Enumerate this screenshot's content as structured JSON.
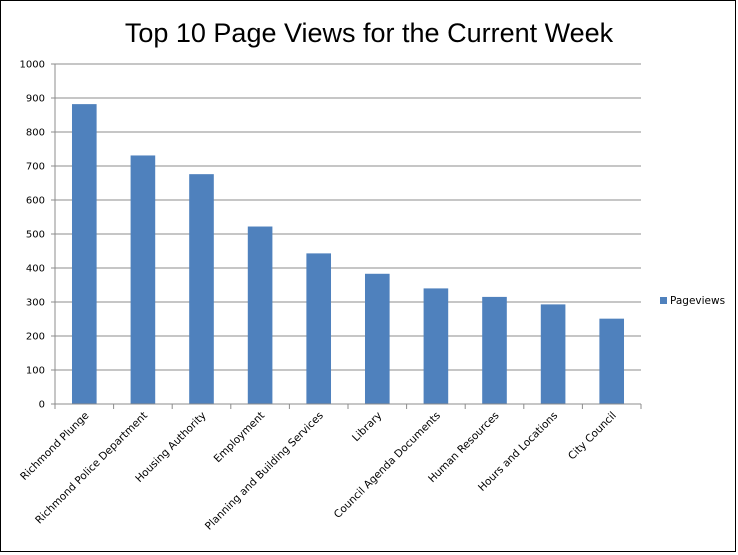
{
  "chart_data": {
    "type": "bar",
    "title": "Top 10 Page Views for the Current Week",
    "xlabel": "",
    "ylabel": "",
    "ylim": [
      0,
      1000
    ],
    "yticks": [
      0,
      100,
      200,
      300,
      400,
      500,
      600,
      700,
      800,
      900,
      1000
    ],
    "grid": true,
    "legend_position": "right",
    "categories": [
      "Richmond Plunge",
      "Richmond Police Department",
      "Housing Authority",
      "Employment",
      "Planning and Building Services",
      "Library",
      "Council Agenda Documents",
      "Human Resources",
      "Hours and Locations",
      "City Council"
    ],
    "series": [
      {
        "name": "Pageviews",
        "color": "#4F81BD",
        "values": [
          882,
          731,
          676,
          522,
          443,
          383,
          340,
          315,
          293,
          251
        ]
      }
    ]
  }
}
